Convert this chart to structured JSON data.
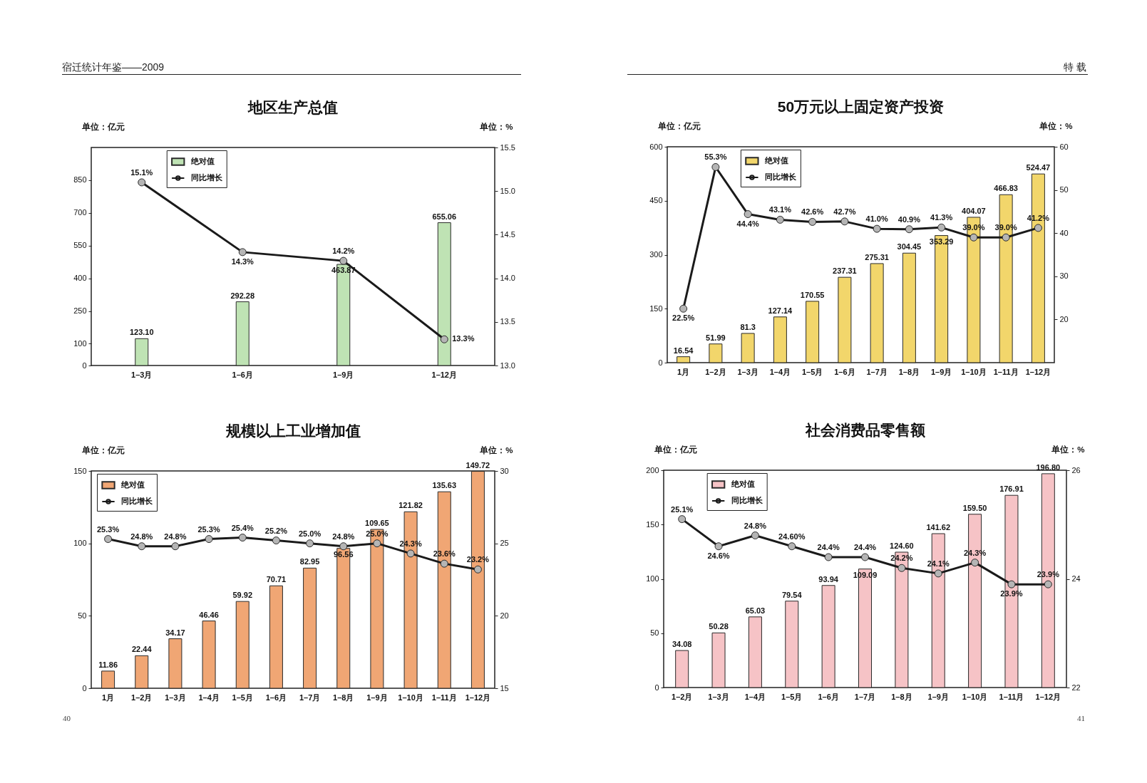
{
  "chart_data": [
    {
      "type": "bar",
      "title": "地区生产总值",
      "categories": [
        "1–3月",
        "1–6月",
        "1–9月",
        "1–12月"
      ],
      "series": [
        {
          "name": "绝对值",
          "color": "#bfe3b4",
          "values": [
            123.1,
            292.28,
            463.87,
            655.06
          ],
          "value_labels": [
            "123.10",
            "292.28",
            "463.87",
            "655.06"
          ]
        },
        {
          "name": "同比增长",
          "type": "line",
          "axis": "y2",
          "color": "#1a1a1a",
          "values": [
            15.1,
            14.3,
            14.2,
            13.3
          ],
          "value_labels": [
            "15.1%",
            "14.3%",
            "14.2%",
            "13.3%"
          ]
        }
      ],
      "ylabel": "单位：亿元",
      "y2label": "单位：%",
      "ylim": [
        0,
        1000
      ],
      "yticks": [
        0,
        100,
        250,
        400,
        550,
        700,
        850
      ],
      "y2lim": [
        13,
        15.5
      ],
      "y2ticks": [
        {
          "value": 13,
          "label": "13.0"
        },
        13.5,
        {
          "value": 14,
          "label": "14.0"
        },
        14.5,
        {
          "value": 15,
          "label": "15.0"
        },
        15.5
      ],
      "legend": "top left",
      "marker": "circle",
      "annotations": [
        "宿迁统计年鉴——2009"
      ]
    },
    {
      "type": "bar",
      "title": "50万元以上固定资产投资",
      "categories": [
        "1月",
        "1–2月",
        "1–3月",
        "1–4月",
        "1–5月",
        "1–6月",
        "1–7月",
        "1–8月",
        "1–9月",
        "1–10月",
        "1–11月",
        "1–12月"
      ],
      "series": [
        {
          "name": "绝对值",
          "color": "#f2d66b",
          "values": [
            16.54,
            51.99,
            81.3,
            127.14,
            170.55,
            237.31,
            275.31,
            304.45,
            353.29,
            404.07,
            466.83,
            524.47
          ],
          "value_labels": [
            "16.54",
            "51.99",
            "81.3",
            "127.14",
            "170.55",
            "237.31",
            "275.31",
            "304.45",
            "353.29",
            "404.07",
            "466.83",
            "524.47"
          ]
        },
        {
          "name": "同比增长",
          "type": "line",
          "axis": "y2",
          "color": "#1a1a1a",
          "values": [
            22.5,
            55.3,
            44.4,
            43.1,
            42.6,
            42.7,
            41.0,
            40.9,
            41.3,
            39.0,
            39.0,
            41.2
          ],
          "value_labels": [
            "22.5%",
            "55.3%",
            "44.4%",
            "43.1%",
            "42.6%",
            "42.7%",
            "41.0%",
            "40.9%",
            "41.3%",
            "39.0%",
            "39.0%",
            "41.2%"
          ]
        }
      ],
      "ylabel": "单位：亿元",
      "y2label": "单位：%",
      "ylim": [
        0,
        600
      ],
      "yticks": [
        0,
        150,
        300,
        450,
        600
      ],
      "y2lim": [
        10,
        60
      ],
      "y2ticks": [
        20,
        30,
        40,
        50,
        60
      ],
      "legend": "top left",
      "marker": "circle",
      "annotations": [
        "特 载"
      ]
    },
    {
      "type": "bar",
      "title": "规模以上工业增加值",
      "categories": [
        "1月",
        "1–2月",
        "1–3月",
        "1–4月",
        "1–5月",
        "1–6月",
        "1–7月",
        "1–8月",
        "1–9月",
        "1–10月",
        "1–11月",
        "1–12月"
      ],
      "series": [
        {
          "name": "绝对值",
          "color": "#f0a674",
          "values": [
            11.86,
            22.44,
            34.17,
            46.46,
            59.92,
            70.71,
            82.95,
            96.56,
            109.65,
            121.82,
            135.63,
            149.72
          ],
          "value_labels": [
            "11.86",
            "22.44",
            "34.17",
            "46.46",
            "59.92",
            "70.71",
            "82.95",
            "96.56",
            "109.65",
            "121.82",
            "135.63",
            "149.72"
          ]
        },
        {
          "name": "同比增长",
          "type": "line",
          "axis": "y2",
          "color": "#1a1a1a",
          "values": [
            25.3,
            24.8,
            24.8,
            25.3,
            25.4,
            25.2,
            25.0,
            24.8,
            25.0,
            24.3,
            23.6,
            23.2
          ],
          "value_labels": [
            "25.3%",
            "24.8%",
            "24.8%",
            "25.3%",
            "25.4%",
            "25.2%",
            "25.0%",
            "24.8%",
            "25.0%",
            "24.3%",
            "23.6%",
            "23.2%"
          ]
        }
      ],
      "ylabel": "单位：亿元",
      "y2label": "单位：%",
      "ylim": [
        0,
        150
      ],
      "yticks": [
        0,
        50,
        100,
        150
      ],
      "y2lim": [
        15,
        30
      ],
      "y2ticks": [
        15,
        20,
        25,
        30
      ],
      "legend": "top left",
      "marker": "circle",
      "annotations": [
        "40"
      ]
    },
    {
      "type": "bar",
      "title": "社会消费品零售额",
      "categories": [
        "1–2月",
        "1–3月",
        "1–4月",
        "1–5月",
        "1–6月",
        "1–7月",
        "1–8月",
        "1–9月",
        "1–10月",
        "1–11月",
        "1–12月"
      ],
      "series": [
        {
          "name": "绝对值",
          "color": "#f6c3c6",
          "values": [
            34.08,
            50.28,
            65.03,
            79.54,
            93.94,
            109.09,
            124.6,
            141.62,
            159.5,
            176.91,
            196.8
          ],
          "value_labels": [
            "34.08",
            "50.28",
            "65.03",
            "79.54",
            "93.94",
            "109.09",
            "124.60",
            "141.62",
            "159.50",
            "176.91",
            "196.80"
          ]
        },
        {
          "name": "同比增长",
          "type": "line",
          "axis": "y2",
          "color": "#1a1a1a",
          "values": [
            25.1,
            24.6,
            24.8,
            24.6,
            24.4,
            24.4,
            24.2,
            24.1,
            24.3,
            23.9,
            23.9
          ],
          "value_labels": [
            "25.1%",
            "24.6%",
            "24.8%",
            "24.60%",
            "24.4%",
            "24.4%",
            "24.2%",
            "24.1%",
            "24.3%",
            "23.9%",
            "23.9%"
          ]
        }
      ],
      "ylabel": "单位：亿元",
      "y2label": "单位：%",
      "ylim": [
        0,
        200
      ],
      "yticks": [
        0,
        50,
        100,
        150,
        200
      ],
      "y2lim": [
        22,
        26
      ],
      "y2ticks": [
        22,
        24,
        26
      ],
      "legend": "top left",
      "marker": "circle",
      "annotations": [
        "41"
      ]
    }
  ]
}
